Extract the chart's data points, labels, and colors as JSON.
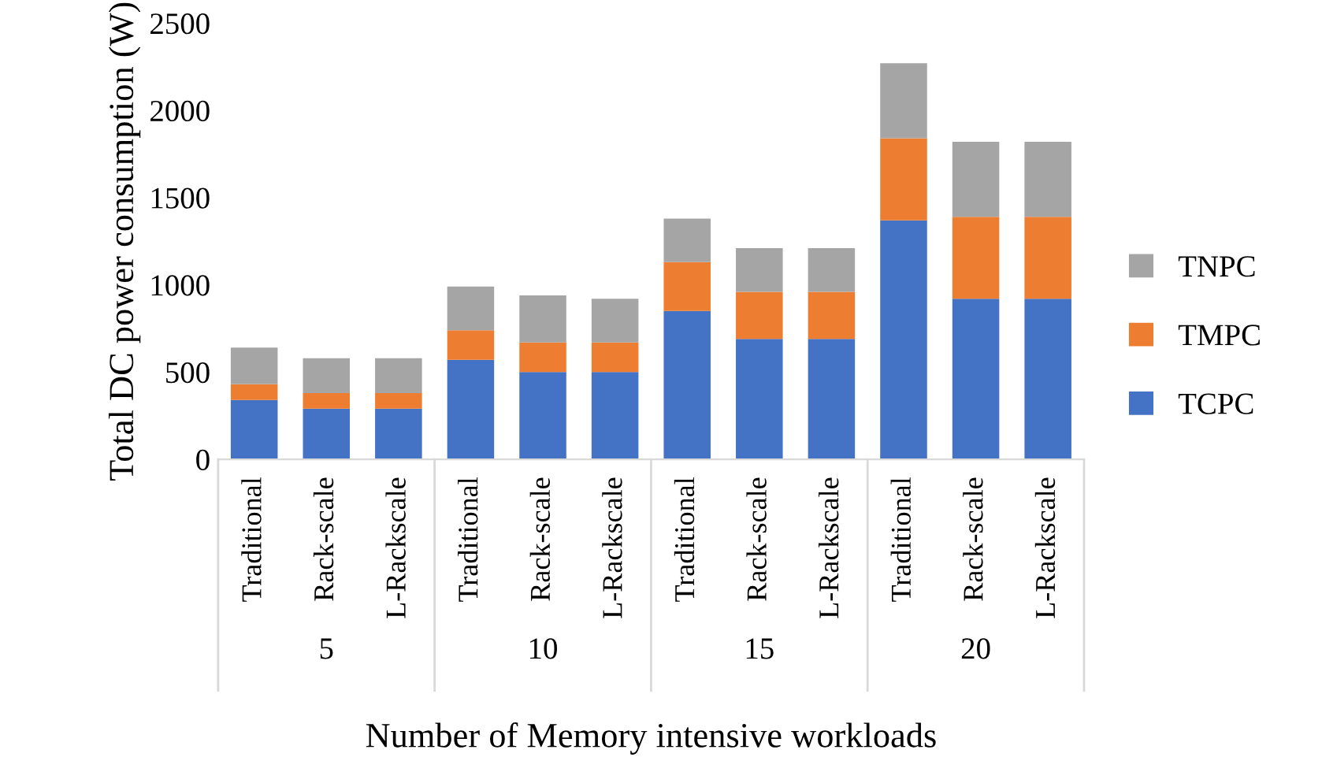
{
  "chart_data": {
    "type": "bar",
    "stacked": true,
    "ylabel": "Total DC power consumption (W)",
    "xlabel": "Number of Memory intensive workloads",
    "categories": [
      "Traditional",
      "Rack-scale",
      "L-Rackscale",
      "Traditional",
      "Rack-scale",
      "L-Rackscale",
      "Traditional",
      "Rack-scale",
      "L-Rackscale",
      "Traditional",
      "Rack-scale",
      "L-Rackscale"
    ],
    "annotations": [
      "5",
      "10",
      "15",
      "20"
    ],
    "series": [
      {
        "name": "TCPC",
        "color": "#4472c4",
        "values": [
          340,
          290,
          290,
          570,
          500,
          500,
          850,
          690,
          690,
          1370,
          920,
          920
        ]
      },
      {
        "name": "TMPC",
        "color": "#ed7d31",
        "values": [
          90,
          90,
          90,
          170,
          170,
          170,
          280,
          270,
          270,
          470,
          470,
          470
        ]
      },
      {
        "name": "TNPC",
        "color": "#a5a5a5",
        "values": [
          210,
          200,
          200,
          250,
          270,
          250,
          250,
          250,
          250,
          430,
          430,
          430
        ]
      }
    ],
    "ylim": [
      0,
      2500
    ],
    "yticks": [
      0,
      500,
      1000,
      1500,
      2000,
      2500
    ],
    "grid": false,
    "legend": "right"
  }
}
